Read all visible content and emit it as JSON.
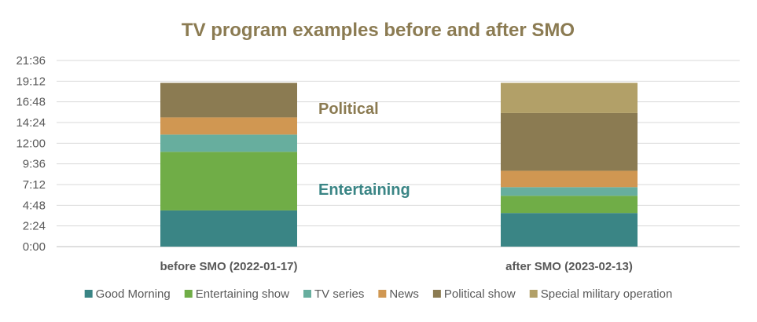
{
  "chart_data": {
    "type": "bar",
    "stacked": true,
    "title": "TV program examples before and after SMO",
    "categories": [
      "before SMO (2022-01-17)",
      "after SMO (2023-02-13)"
    ],
    "y_unit": "hours",
    "ylim": [
      0,
      21.6
    ],
    "y_ticks": [
      "0:00",
      "2:24",
      "4:48",
      "7:12",
      "9:36",
      "12:00",
      "14:24",
      "16:48",
      "19:12",
      "21:36"
    ],
    "y_tick_values": [
      0,
      2.4,
      4.8,
      7.2,
      9.6,
      12,
      14.4,
      16.8,
      19.2,
      21.6
    ],
    "grid": true,
    "legend_position": "bottom",
    "series": [
      {
        "name": "Good Morning",
        "color": "#3a8585",
        "values": [
          4.2,
          3.9
        ]
      },
      {
        "name": "Entertaining show",
        "color": "#70ad47",
        "values": [
          6.8,
          2.0
        ]
      },
      {
        "name": "TV series",
        "color": "#67ae9e",
        "values": [
          2.0,
          1.0
        ]
      },
      {
        "name": "News",
        "color": "#d09752",
        "values": [
          2.0,
          1.9
        ]
      },
      {
        "name": "Political show",
        "color": "#8b7b52",
        "values": [
          4.0,
          6.7
        ]
      },
      {
        "name": "Special military operation",
        "color": "#b2a068",
        "values": [
          0,
          3.5
        ]
      }
    ],
    "annotations": [
      {
        "text": "Political",
        "color": "#8b7b52"
      },
      {
        "text": "Entertaining",
        "color": "#3a8585"
      }
    ]
  }
}
